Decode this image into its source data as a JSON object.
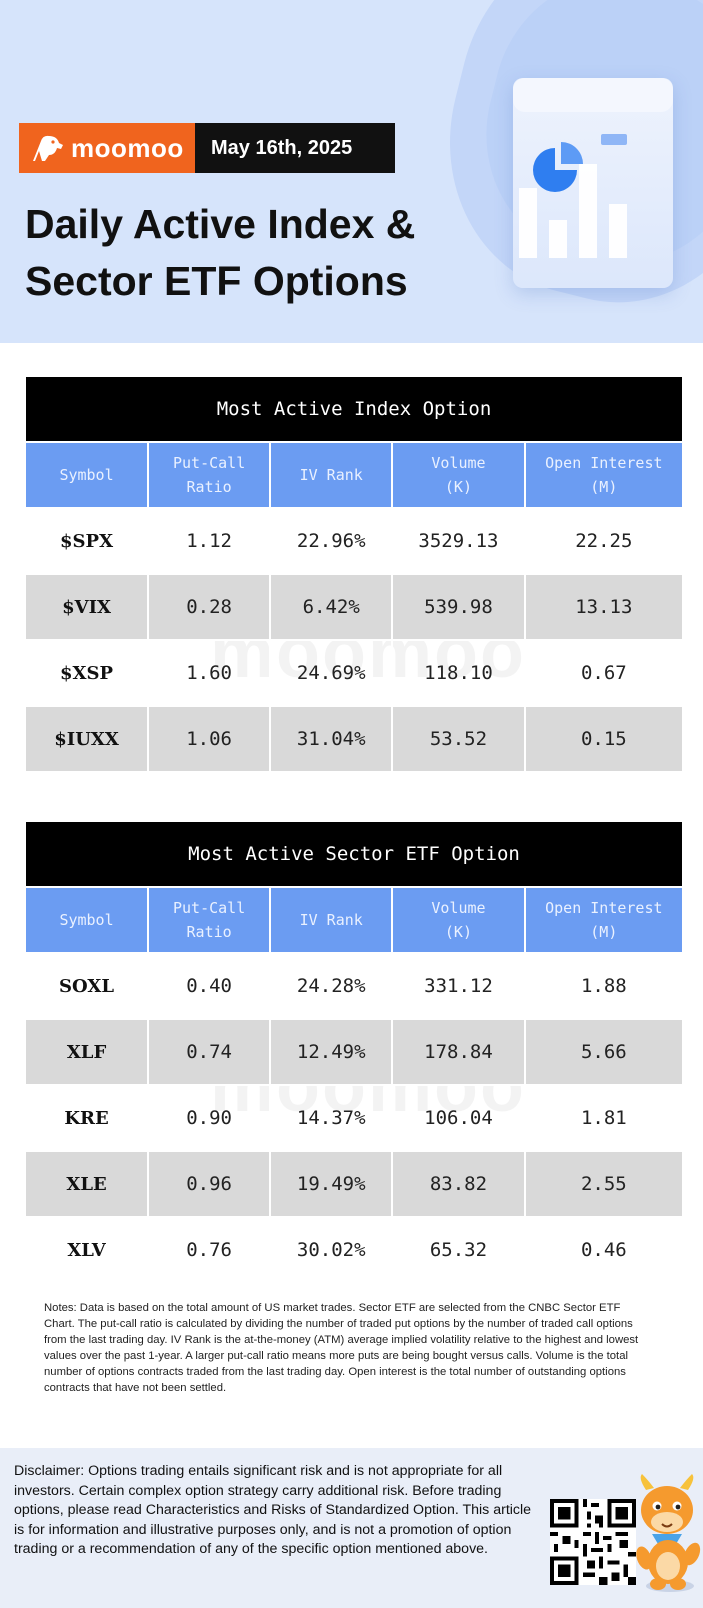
{
  "header": {
    "brand": "moomoo",
    "date": "May 16th, 2025",
    "title_line1": "Daily Active Index &",
    "title_line2": "Sector ETF Options"
  },
  "index_table": {
    "title": "Most Active Index Option",
    "headers": [
      {
        "l1": "Symbol",
        "l2": ""
      },
      {
        "l1": "Put-Call",
        "l2": "Ratio"
      },
      {
        "l1": "IV Rank",
        "l2": ""
      },
      {
        "l1": "Volume",
        "l2": "(K)"
      },
      {
        "l1": "Open Interest",
        "l2": "(M)"
      }
    ],
    "rows": [
      {
        "symbol": "$SPX",
        "pcr": "1.12",
        "iv": "22.96%",
        "volume": "3529.13",
        "oi": "22.25"
      },
      {
        "symbol": "$VIX",
        "pcr": "0.28",
        "iv": "6.42%",
        "volume": "539.98",
        "oi": "13.13"
      },
      {
        "symbol": "$XSP",
        "pcr": "1.60",
        "iv": "24.69%",
        "volume": "118.10",
        "oi": "0.67"
      },
      {
        "symbol": "$IUXX",
        "pcr": "1.06",
        "iv": "31.04%",
        "volume": "53.52",
        "oi": "0.15"
      }
    ]
  },
  "etf_table": {
    "title": "Most Active Sector ETF Option",
    "headers": [
      {
        "l1": "Symbol",
        "l2": ""
      },
      {
        "l1": "Put-Call",
        "l2": "Ratio"
      },
      {
        "l1": "IV Rank",
        "l2": ""
      },
      {
        "l1": "Volume",
        "l2": "(K)"
      },
      {
        "l1": "Open Interest",
        "l2": "(M)"
      }
    ],
    "rows": [
      {
        "symbol": "SOXL",
        "pcr": "0.40",
        "iv": "24.28%",
        "volume": "331.12",
        "oi": "1.88"
      },
      {
        "symbol": "XLF",
        "pcr": "0.74",
        "iv": "12.49%",
        "volume": "178.84",
        "oi": "5.66"
      },
      {
        "symbol": "KRE",
        "pcr": "0.90",
        "iv": "14.37%",
        "volume": "106.04",
        "oi": "1.81"
      },
      {
        "symbol": "XLE",
        "pcr": "0.96",
        "iv": "19.49%",
        "volume": "83.82",
        "oi": "2.55"
      },
      {
        "symbol": "XLV",
        "pcr": "0.76",
        "iv": "30.02%",
        "volume": "65.32",
        "oi": "0.46"
      }
    ]
  },
  "watermark": "moomoo",
  "notes": "Notes: Data is based on the total amount of US market trades. Sector ETF are selected from the CNBC Sector ETF Chart. The put-call ratio is calculated by dividing the number of traded put options by the number of traded call options from the last trading day. IV Rank is the at-the-money (ATM) average implied volatility relative to the highest and lowest values over the past 1-year. A larger put-call ratio means more puts are being bought versus calls. Volume is the total number of options contracts traded from the last trading day. Open interest is the total number of outstanding options contracts that have not been settled.",
  "disclaimer": "Disclaimer: Options trading entails significant risk and is not appropriate for all investors. Certain complex option strategy carry additional risk. Before trading options, please read Characteristics and Risks of Standardized Option. This article is for information and illustrative purposes only, and is not a promotion of option trading or a recommendation of any of the specific option mentioned above.",
  "colors": {
    "hero_bg": "#d6e4fb",
    "brand_orange": "#f0641e",
    "header_blue": "#6b9cf2",
    "row_alt": "#d9d9d9",
    "footer_bg": "#e9eef8"
  },
  "icons": [
    "bull-logo-icon",
    "chart-illustration",
    "qr-code",
    "mascot"
  ]
}
